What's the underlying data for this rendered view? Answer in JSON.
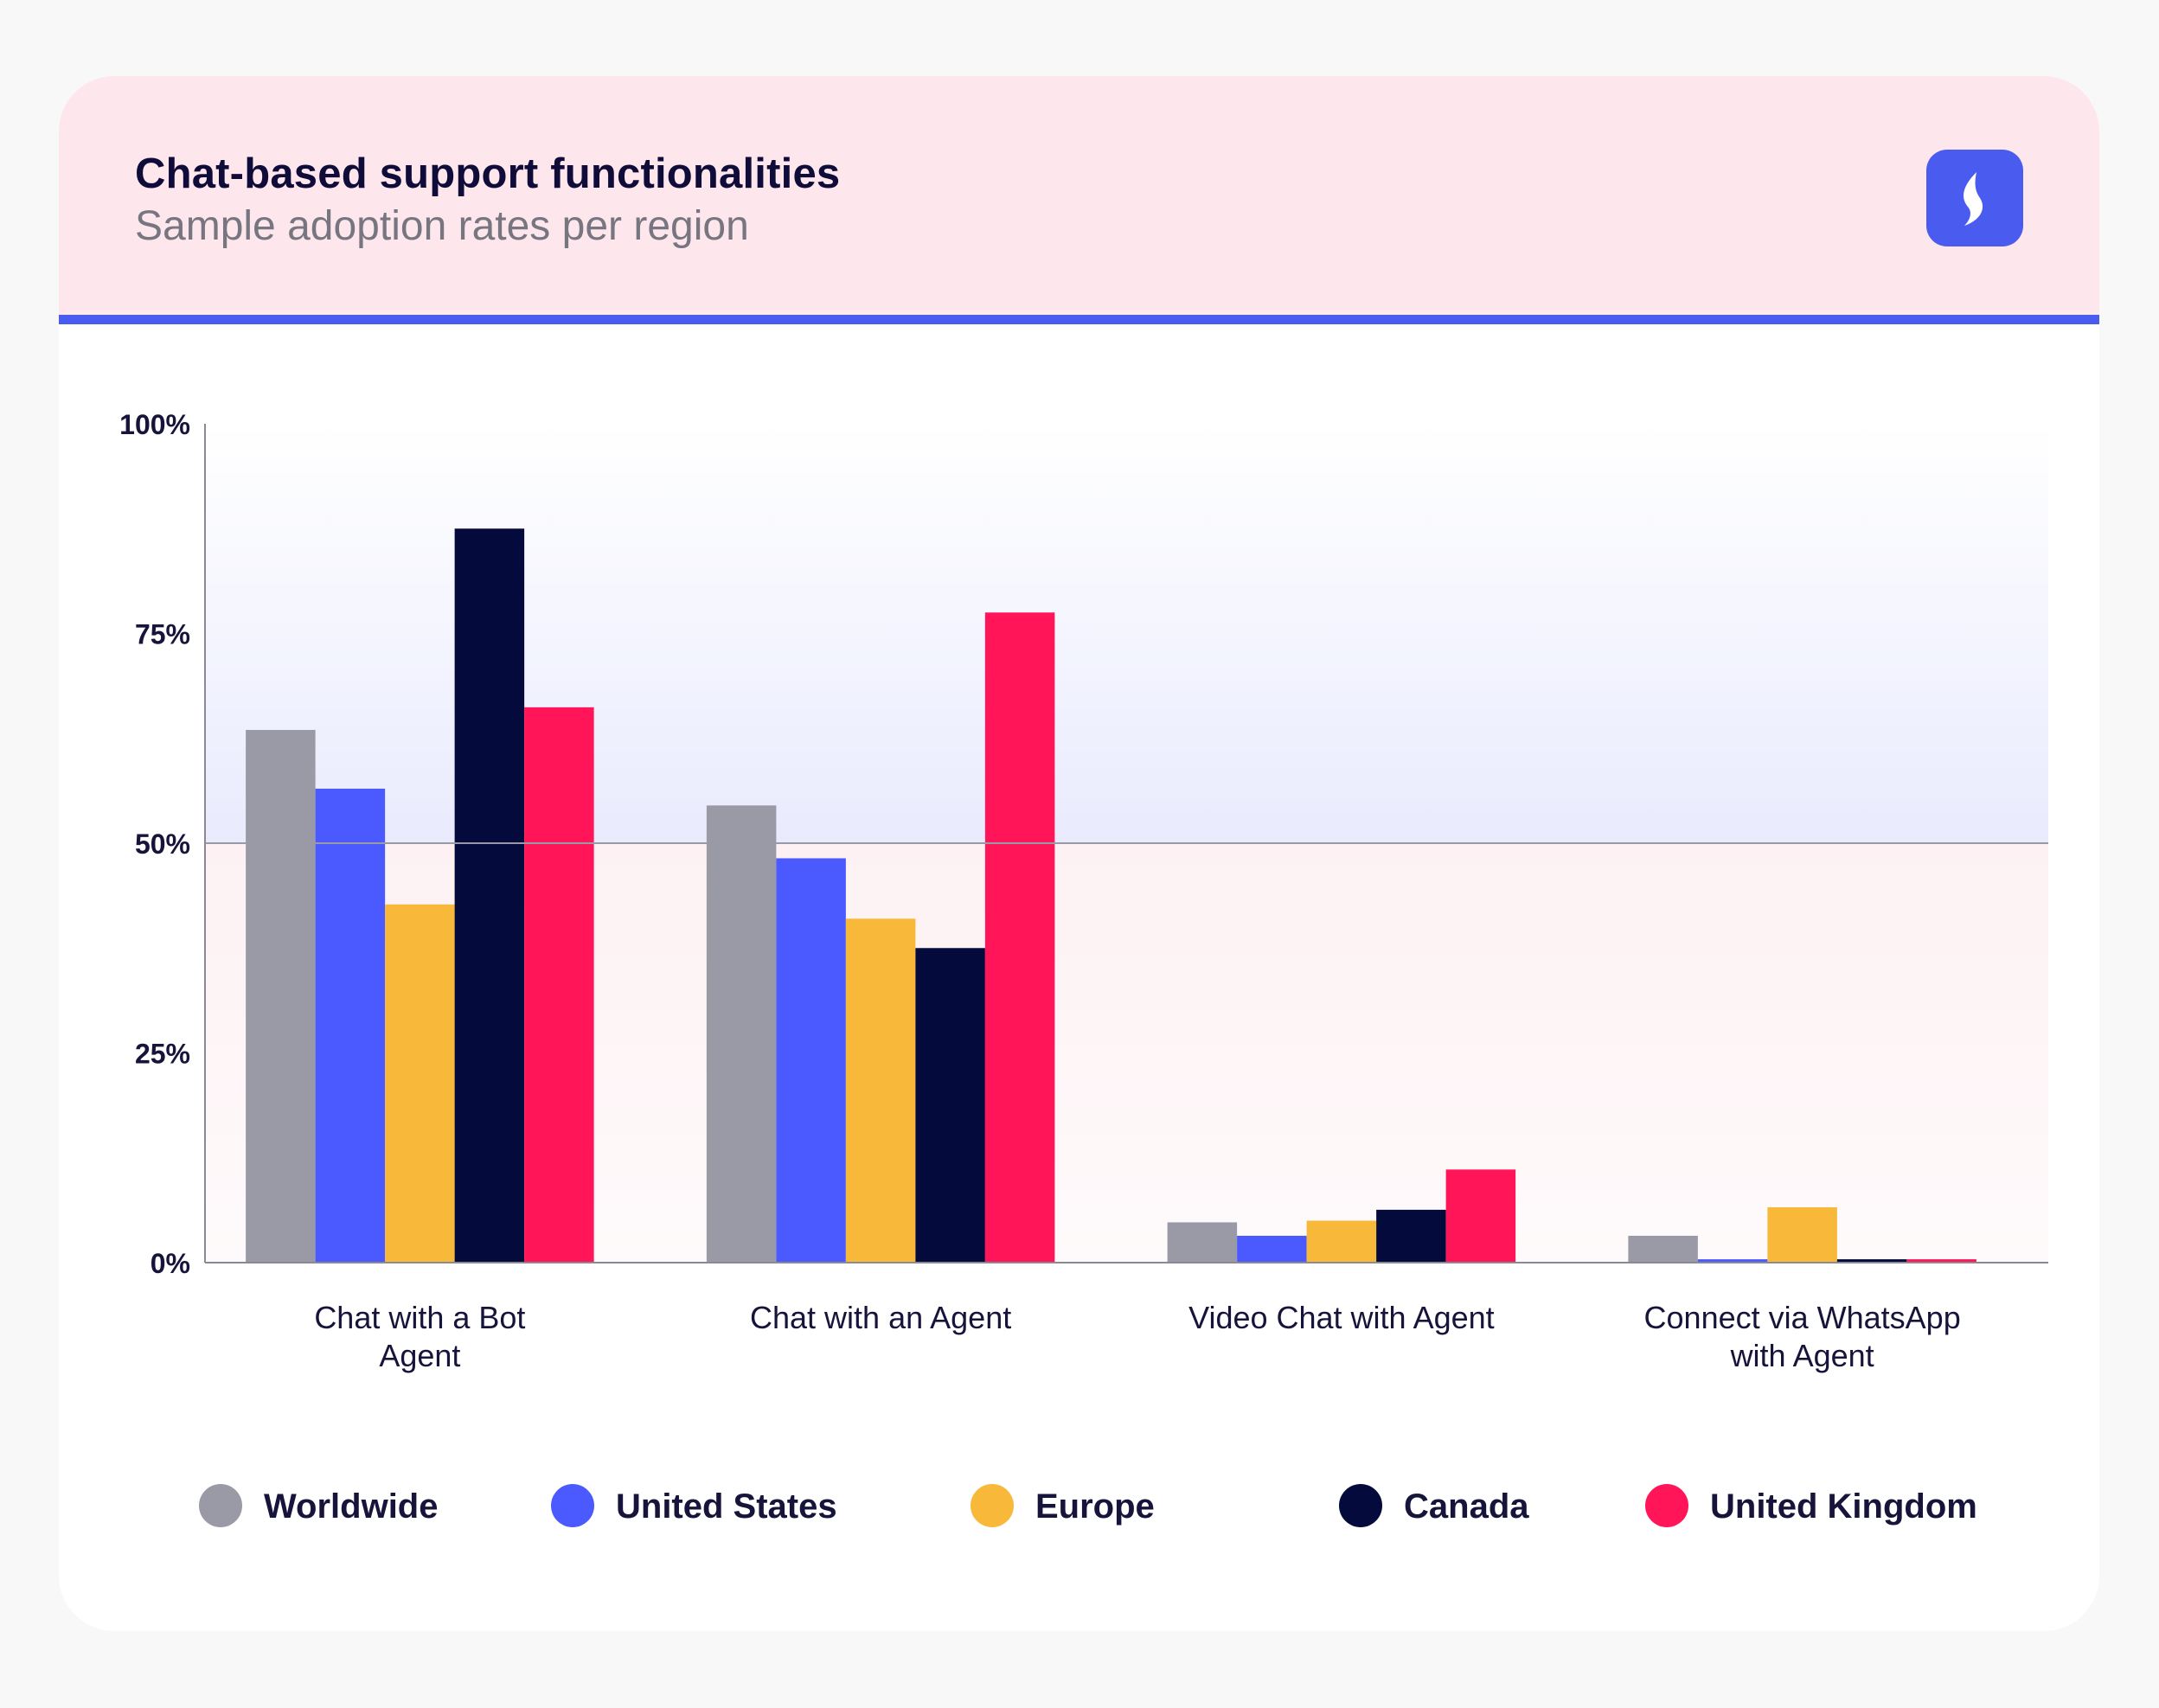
{
  "header": {
    "title": "Chat-based support functionalities",
    "subtitle": "Sample adoption rates per region",
    "logo_icon": "brand-logo-icon"
  },
  "chart_data": {
    "type": "bar",
    "title": "Chat-based support functionalities",
    "subtitle": "Sample adoption rates per region",
    "xlabel": "",
    "ylabel": "",
    "ylim": [
      0,
      100
    ],
    "yticks": [
      {
        "value": 0,
        "label": "0%"
      },
      {
        "value": 25,
        "label": "25%"
      },
      {
        "value": 50,
        "label": "50%"
      },
      {
        "value": 75,
        "label": "75%"
      },
      {
        "value": 100,
        "label": "100%"
      }
    ],
    "reference_line": 50,
    "grid": false,
    "legend_position": "bottom",
    "categories": [
      [
        "Chat with a Bot",
        "Agent"
      ],
      [
        "Chat with an Agent"
      ],
      [
        "Video Chat with Agent"
      ],
      [
        "Connect via WhatsApp",
        "with Agent"
      ]
    ],
    "series": [
      {
        "name": "Worldwide",
        "color": "#9a9aa6",
        "values": [
          63.5,
          54.5,
          4.8,
          3.2
        ]
      },
      {
        "name": "United States",
        "color": "#4a5aff",
        "values": [
          56.5,
          48.2,
          3.2,
          0.4
        ]
      },
      {
        "name": "Europe",
        "color": "#f8b93a",
        "values": [
          42.7,
          41,
          5,
          6.6
        ]
      },
      {
        "name": "Canada",
        "color": "#050a3d",
        "values": [
          87.5,
          37.5,
          6.3,
          0.4
        ]
      },
      {
        "name": "United Kingdom",
        "color": "#ff1558",
        "values": [
          66.2,
          77.5,
          11.1,
          0.4
        ]
      }
    ]
  }
}
